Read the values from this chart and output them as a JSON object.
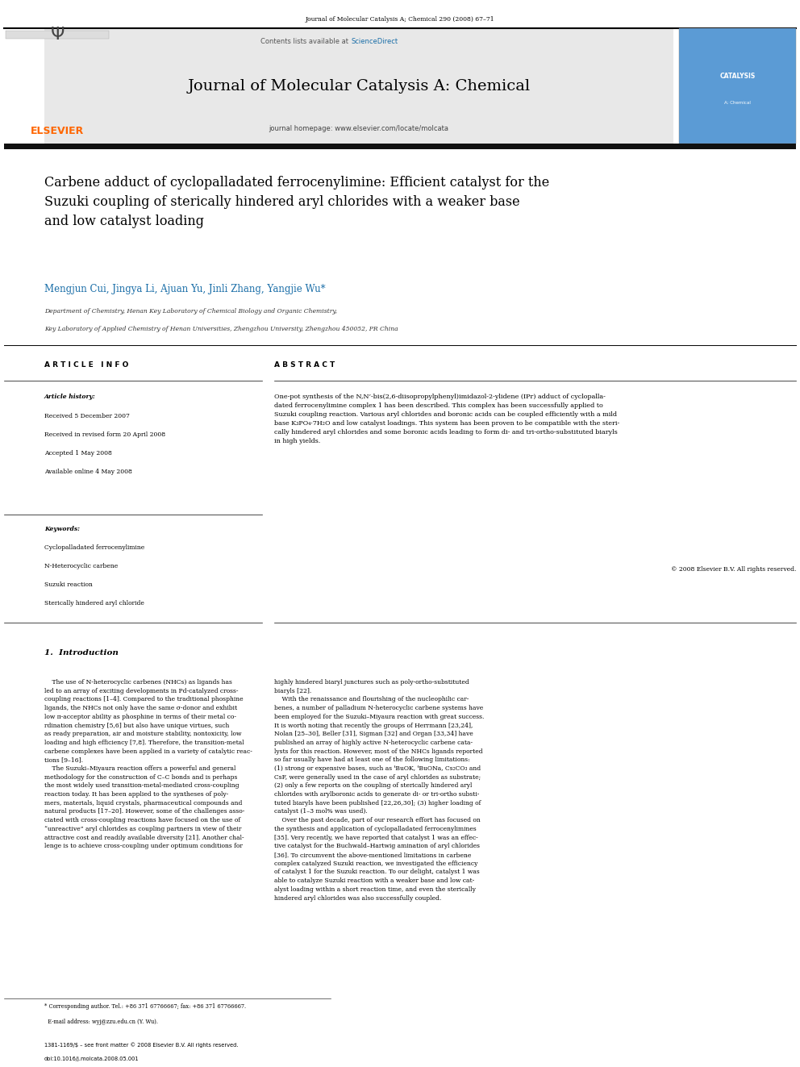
{
  "page_width": 9.92,
  "page_height": 13.23,
  "bg_color": "#ffffff",
  "top_journal_ref": "Journal of Molecular Catalysis A; Chemical 290 (2008) 67–71",
  "journal_name": "Journal of Molecular Catalysis A: Chemical",
  "journal_homepage": "journal homepage: www.elsevier.com/locate/molcata",
  "elsevier_color": "#ff6600",
  "sciencedirect_color": "#1a6ea8",
  "header_bg": "#e8e8e8",
  "article_title": "Carbene adduct of cyclopalladated ferrocenylimine: Efficient catalyst for the\nSuzuki coupling of sterically hindered aryl chlorides with a weaker base\nand low catalyst loading",
  "authors": "Mengjun Cui, Jingya Li, Ajuan Yu, Jinli Zhang, Yangjie Wu*",
  "affiliation1": "Department of Chemistry, Henan Key Laboratory of Chemical Biology and Organic Chemistry,",
  "affiliation2": "Key Laboratory of Applied Chemistry of Henan Universities, Zhengzhou University, Zhengzhou 450052, PR China",
  "article_info_header": "A R T I C L E   I N F O",
  "abstract_header": "A B S T R A C T",
  "article_history_label": "Article history:",
  "received": "Received 5 December 2007",
  "received_revised": "Received in revised form 20 April 2008",
  "accepted": "Accepted 1 May 2008",
  "available": "Available online 4 May 2008",
  "keywords_label": "Keywords:",
  "keywords": [
    "Cyclopalladated ferrocenylimine",
    "N-Heterocyclic carbene",
    "Suzuki reaction",
    "Sterically hindered aryl chloride"
  ],
  "abstract_text": "One-pot synthesis of the N,N’-bis(2,6-diisopropylphenyl)imidazol-2-ylidene (IPr) adduct of cyclopalla-\ndated ferrocenylimine complex 1 has been described. This complex has been successfully applied to\nSuzuki coupling reaction. Various aryl chlorides and boronic acids can be coupled efficiently with a mild\nbase K₃PO₄·7H₂O and low catalyst loadings. This system has been proven to be compatible with the steri-\ncally hindered aryl chlorides and some boronic acids leading to form di- and tri-ortho-substituted biaryls\nin high yields.",
  "copyright": "© 2008 Elsevier B.V. All rights reserved.",
  "intro_header": "1.  Introduction",
  "intro_col1": "    The use of N-heterocyclic carbenes (NHCs) as ligands has\nled to an array of exciting developments in Pd-catalyzed cross-\ncoupling reactions [1–4]. Compared to the traditional phosphine\nligands, the NHCs not only have the same σ-donor and exhibit\nlow π-acceptor ability as phosphine in terms of their metal co-\nrdination chemistry [5,6] but also have unique virtues, such\nas ready preparation, air and moisture stability, nontoxicity, low\nloading and high efficiency [7,8]. Therefore, the transition-metal\ncarbene complexes have been applied in a variety of catalytic reac-\ntions [9–16].\n    The Suzuki–Miyaura reaction offers a powerful and general\nmethodology for the construction of C–C bonds and is perhaps\nthe most widely used transition-metal-mediated cross-coupling\nreaction today. It has been applied to the syntheses of poly-\nmers, materials, liquid crystals, pharmaceutical compounds and\nnatural products [17–20]. However, some of the challenges asso-\nciated with cross-coupling reactions have focused on the use of\n“unreactive” aryl chlorides as coupling partners in view of their\nattractive cost and readily available diversity [21]. Another chal-\nlenge is to achieve cross-coupling under optimum conditions for",
  "intro_col2": "highly hindered biaryl junctures such as poly-ortho-substituted\nbiaryls [22].\n    With the renaissance and flourishing of the nucleophilic car-\nbenes, a number of palladium N-heterocyclic carbene systems have\nbeen employed for the Suzuki–Miyaura reaction with great success.\nIt is worth noting that recently the groups of Herrmann [23,24],\nNolan [25–30], Beller [31], Sigman [32] and Organ [33,34] have\npublished an array of highly active N-heterocyclic carbene cata-\nlysts for this reaction. However, most of the NHCs ligands reported\nso far usually have had at least one of the following limitations:\n(1) strong or expensive bases, such as ᵗBuOK, ᵗBuONa, Cs₂CO₃ and\nCsF, were generally used in the case of aryl chlorides as substrate;\n(2) only a few reports on the coupling of sterically hindered aryl\nchlorides with arylboronic acids to generate di- or tri-ortho substi-\ntuted biaryls have been published [22,26,30]; (3) higher loading of\ncatalyst (1–3 mol% was used).\n    Over the past decade, part of our research effort has focused on\nthe synthesis and application of cyclopalladated ferrocenylimines\n[35]. Very recently, we have reported that catalyst 1 was an effec-\ntive catalyst for the Buchwald–Hartwig amination of aryl chlorides\n[36]. To circumvent the above-mentioned limitations in carbene\ncomplex catalyzed Suzuki reaction, we investigated the efficiency\nof catalyst 1 for the Suzuki reaction. To our delight, catalyst 1 was\nable to catalyze Suzuki reaction with a weaker base and low cat-\nalyst loading within a short reaction time, and even the sterically\nhindered aryl chlorides was also successfully coupled.",
  "footnote1": "* Corresponding author. Tel.: +86 371 67766667; fax: +86 371 67766667.",
  "footnote2": "  E-mail address: wyj@zzu.edu.cn (Y. Wu).",
  "footer1": "1381-1169/$ – see front matter © 2008 Elsevier B.V. All rights reserved.",
  "footer2": "doi:10.1016/j.molcata.2008.05.001"
}
